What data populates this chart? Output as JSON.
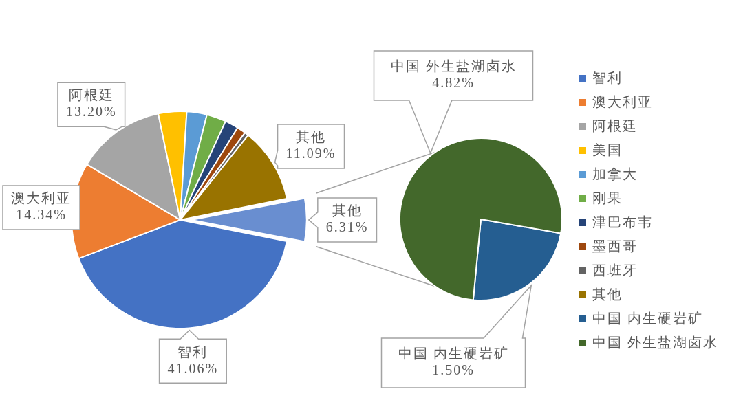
{
  "chart_data": [
    {
      "type": "pie",
      "categories": [
        "智利",
        "澳大利亚",
        "阿根廷",
        "美国",
        "加拿大",
        "刚果",
        "津巴布韦",
        "墨西哥",
        "西班牙",
        "其他",
        "其他"
      ],
      "values": [
        41.06,
        14.34,
        13.2,
        4.2,
        3.0,
        2.9,
        2.0,
        1.3,
        0.6,
        11.09,
        6.31
      ],
      "colors": [
        "#4472c4",
        "#ed7d31",
        "#a5a5a5",
        "#ffc000",
        "#5b9bd5",
        "#70ad47",
        "#264478",
        "#9e480e",
        "#636363",
        "#997300",
        "#698ed0"
      ],
      "value_labels": [
        "41.06%",
        "14.34%",
        "13.20%",
        null,
        null,
        null,
        null,
        null,
        null,
        "11.09%",
        "6.31%"
      ],
      "legend": "right"
    },
    {
      "type": "pie",
      "categories": [
        "中国 内生硬岩矿",
        "中国 外生盐湖卤水"
      ],
      "values": [
        1.5,
        4.82
      ],
      "colors": [
        "#255e91",
        "#43682b"
      ],
      "value_labels": [
        "1.50%",
        "4.82%"
      ],
      "legend": "right"
    }
  ]
}
